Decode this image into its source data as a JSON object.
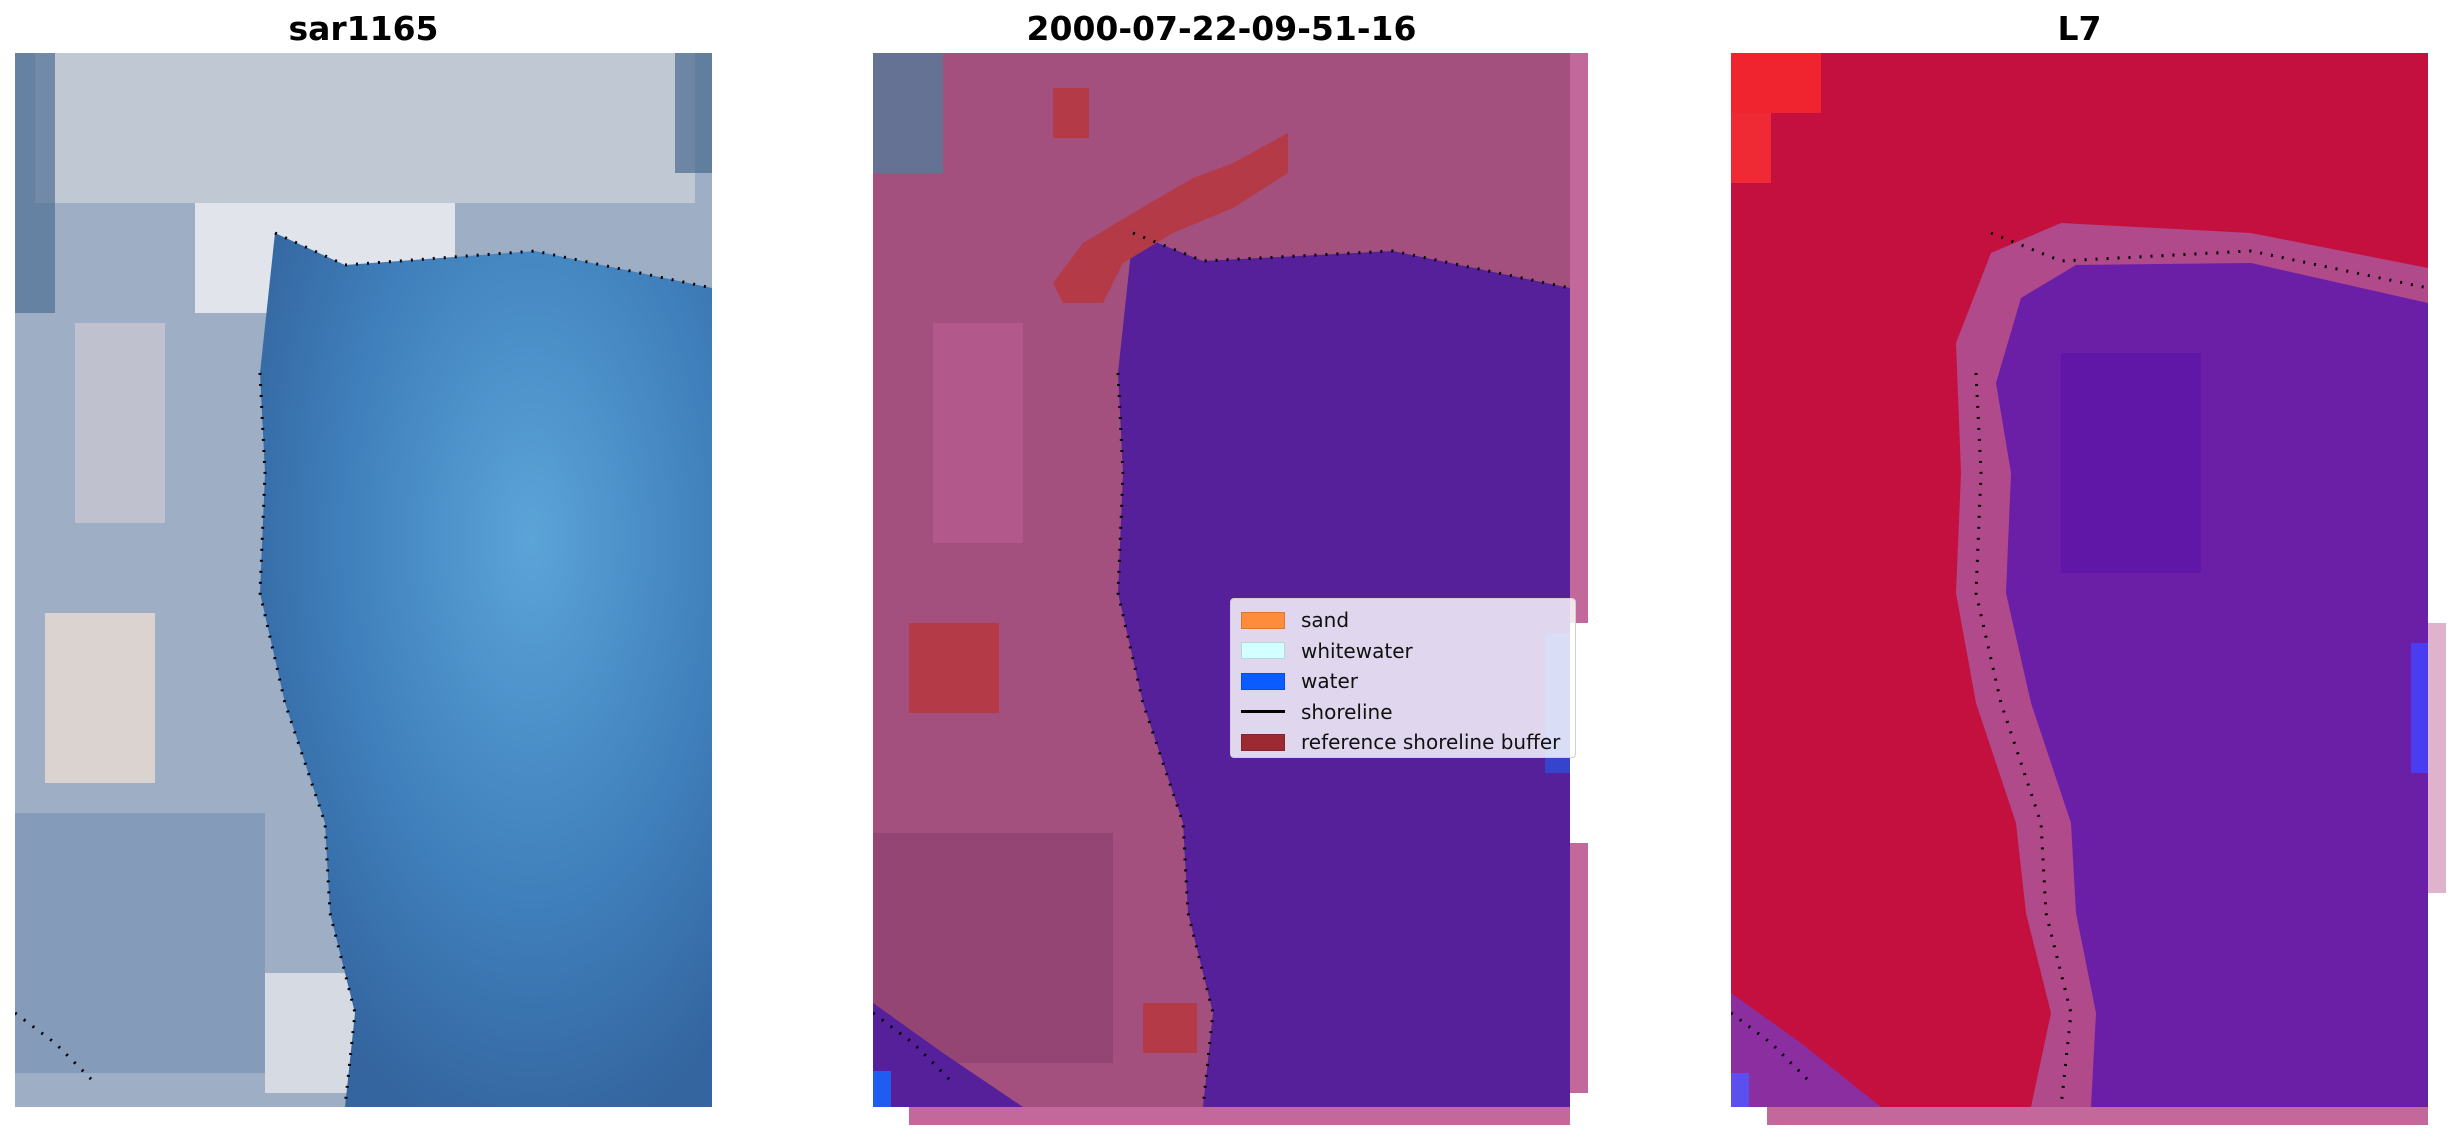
{
  "panels": [
    {
      "title": "sar1165"
    },
    {
      "title": "2000-07-22-09-51-16"
    },
    {
      "title": "L7"
    }
  ],
  "legend": {
    "items": [
      {
        "label": "sand",
        "color": "#ff8c3a",
        "kind": "patch"
      },
      {
        "label": "whitewater",
        "color": "#d2ffff",
        "kind": "patch"
      },
      {
        "label": "water",
        "color": "#0b5cff",
        "kind": "patch"
      },
      {
        "label": "shoreline",
        "color": "#000000",
        "kind": "line"
      },
      {
        "label": "reference shoreline buffer",
        "color": "#9b2a33",
        "kind": "patch"
      }
    ]
  },
  "colors": {
    "rgb_land": "#a9b6c8",
    "rgb_water": "#3e7cb8",
    "classified_land": "#a4507e",
    "classified_water": "#55209a",
    "buffer": "#b43a48",
    "l7_land": "#c4103e",
    "l7_water": "#6a1fa6"
  }
}
